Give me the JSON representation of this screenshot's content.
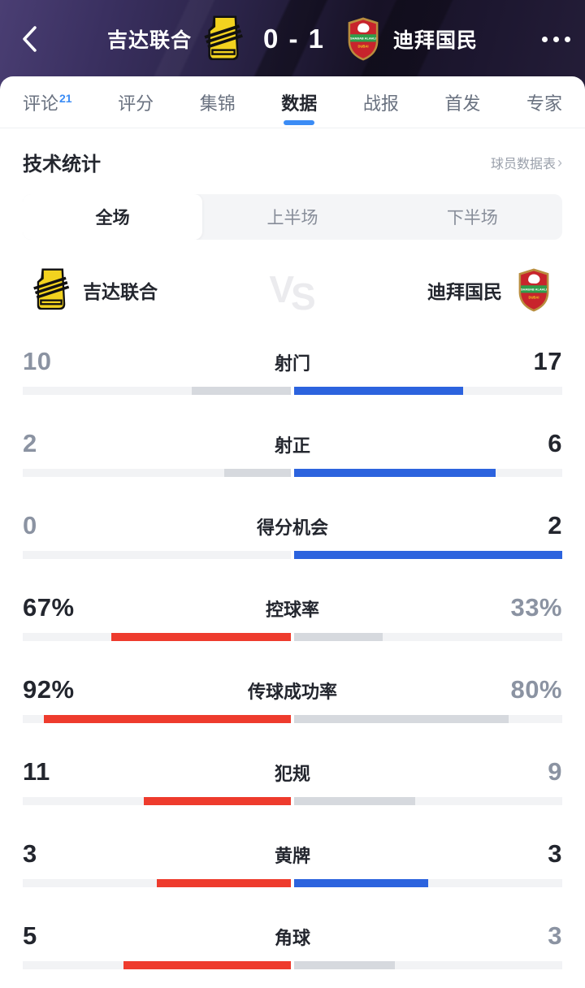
{
  "palette": {
    "accent_blue": "#3b8cf5",
    "bar_blue": "#2c63de",
    "bar_red": "#ee3b2d",
    "bar_gray": "#d6d9de",
    "bar_track": "#f2f3f5",
    "header_bg_dark": "#2a2347",
    "ittihad_yellow": "#f2d21f",
    "alahli_red": "#c8242c",
    "alahli_green": "#2f9e4c",
    "alahli_gold": "#b98d3e"
  },
  "header": {
    "home_team": "吉达联合",
    "away_team": "迪拜国民",
    "score": "0 - 1"
  },
  "tabs": [
    {
      "label": "评论",
      "badge": "21",
      "active": false
    },
    {
      "label": "评分",
      "active": false
    },
    {
      "label": "集锦",
      "active": false
    },
    {
      "label": "数据",
      "active": true
    },
    {
      "label": "战报",
      "active": false
    },
    {
      "label": "首发",
      "active": false
    },
    {
      "label": "专家",
      "active": false
    }
  ],
  "section": {
    "title": "技术统计",
    "link_label": "球员数据表",
    "link_chevron": "›"
  },
  "segments": [
    {
      "label": "全场",
      "active": true
    },
    {
      "label": "上半场",
      "active": false
    },
    {
      "label": "下半场",
      "active": false
    }
  ],
  "teams_row": {
    "home": "吉达联合",
    "away": "迪拜国民",
    "vs": "VS"
  },
  "stats": [
    {
      "label": "射门",
      "home_display": "10",
      "away_display": "17",
      "home_value": 10,
      "away_value": 17,
      "percent": false
    },
    {
      "label": "射正",
      "home_display": "2",
      "away_display": "6",
      "home_value": 2,
      "away_value": 6,
      "percent": false
    },
    {
      "label": "得分机会",
      "home_display": "0",
      "away_display": "2",
      "home_value": 0,
      "away_value": 2,
      "percent": false
    },
    {
      "label": "控球率",
      "home_display": "67%",
      "away_display": "33%",
      "home_value": 67,
      "away_value": 33,
      "percent": true
    },
    {
      "label": "传球成功率",
      "home_display": "92%",
      "away_display": "80%",
      "home_value": 92,
      "away_value": 80,
      "percent": true
    },
    {
      "label": "犯规",
      "home_display": "11",
      "away_display": "9",
      "home_value": 11,
      "away_value": 9,
      "percent": false
    },
    {
      "label": "黄牌",
      "home_display": "3",
      "away_display": "3",
      "home_value": 3,
      "away_value": 3,
      "percent": false
    },
    {
      "label": "角球",
      "home_display": "5",
      "away_display": "3",
      "home_value": 5,
      "away_value": 3,
      "percent": false
    }
  ]
}
